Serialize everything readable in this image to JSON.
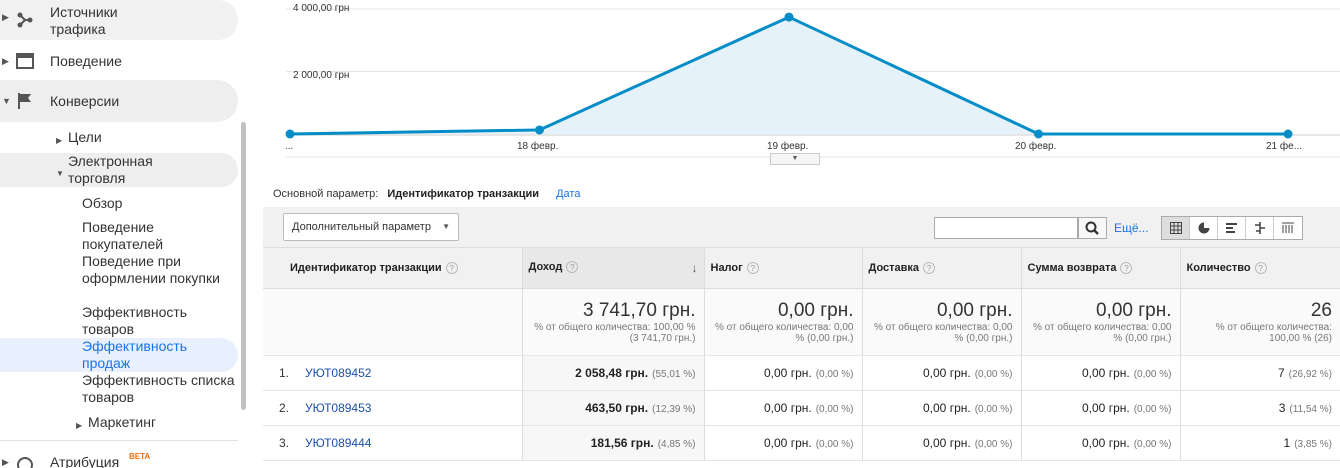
{
  "sidebar": {
    "traffic": "Источники трафика",
    "behavior": "Поведение",
    "conversions": "Конверсии",
    "goals": "Цели",
    "ecommerce": "Электронная торговля",
    "items": [
      "Обзор",
      "Поведение покупателей",
      "Поведение при оформлении покупки",
      "Эффективность товаров",
      "Эффективность продаж",
      "Эффективность списка товаров"
    ],
    "marketing": "Маркетинг",
    "attribution": "Атрибуция",
    "beta": "BETA"
  },
  "chart_data": {
    "type": "area",
    "title": "",
    "xlabel": "",
    "ylabel": "",
    "categories": [
      "...",
      "18 февр.",
      "19 февр.",
      "20 февр.",
      "21 фе..."
    ],
    "series": [
      {
        "values": [
          0,
          130,
          3741.7,
          0,
          0
        ]
      }
    ],
    "y_tick_labels": [
      "4 000,00 грн",
      "2 000,00 грн"
    ],
    "y_ticks": [
      4000,
      2000
    ],
    "ylim": [
      0,
      4000
    ],
    "grid": true,
    "color": "#058dc7"
  },
  "dimension": {
    "label": "Основной параметр:",
    "active": "Идентификатор транзакции",
    "other": "Дата"
  },
  "toolbar": {
    "secondary": "Дополнительный параметр",
    "search_value": "",
    "more": "Ещё..."
  },
  "table": {
    "headers": [
      "Идентификатор транзакции",
      "Доход",
      "Налог",
      "Доставка",
      "Сумма возврата",
      "Количество"
    ],
    "totals": [
      {
        "value": "3 741,70 грн.",
        "sub": "% от общего количества: 100,00 % (3 741,70 грн.)"
      },
      {
        "value": "0,00 грн.",
        "sub": "% от общего количества: 0,00 % (0,00 грн.)"
      },
      {
        "value": "0,00 грн.",
        "sub": "% от общего количества: 0,00 % (0,00 грн.)"
      },
      {
        "value": "0,00 грн.",
        "sub": "% от общего количества: 0,00 % (0,00 грн.)"
      },
      {
        "value": "26",
        "sub": "% от общего количества: 100,00 % (26)"
      }
    ],
    "rows": [
      {
        "n": "1.",
        "id": "УЮТ089452",
        "revenue": "2 058,48 грн.",
        "revenue_pct": "(55,01 %)",
        "tax": "0,00 грн.",
        "tax_pct": "(0,00 %)",
        "ship": "0,00 грн.",
        "ship_pct": "(0,00 %)",
        "refund": "0,00 грн.",
        "refund_pct": "(0,00 %)",
        "qty": "7",
        "qty_pct": "(26,92 %)"
      },
      {
        "n": "2.",
        "id": "УЮТ089453",
        "revenue": "463,50 грн.",
        "revenue_pct": "(12,39 %)",
        "tax": "0,00 грн.",
        "tax_pct": "(0,00 %)",
        "ship": "0,00 грн.",
        "ship_pct": "(0,00 %)",
        "refund": "0,00 грн.",
        "refund_pct": "(0,00 %)",
        "qty": "3",
        "qty_pct": "(11,54 %)"
      },
      {
        "n": "3.",
        "id": "УЮТ089444",
        "revenue": "181,56 грн.",
        "revenue_pct": "(4,85 %)",
        "tax": "0,00 грн.",
        "tax_pct": "(0,00 %)",
        "ship": "0,00 грн.",
        "ship_pct": "(0,00 %)",
        "refund": "0,00 грн.",
        "refund_pct": "(0,00 %)",
        "qty": "1",
        "qty_pct": "(3,85 %)"
      }
    ]
  }
}
